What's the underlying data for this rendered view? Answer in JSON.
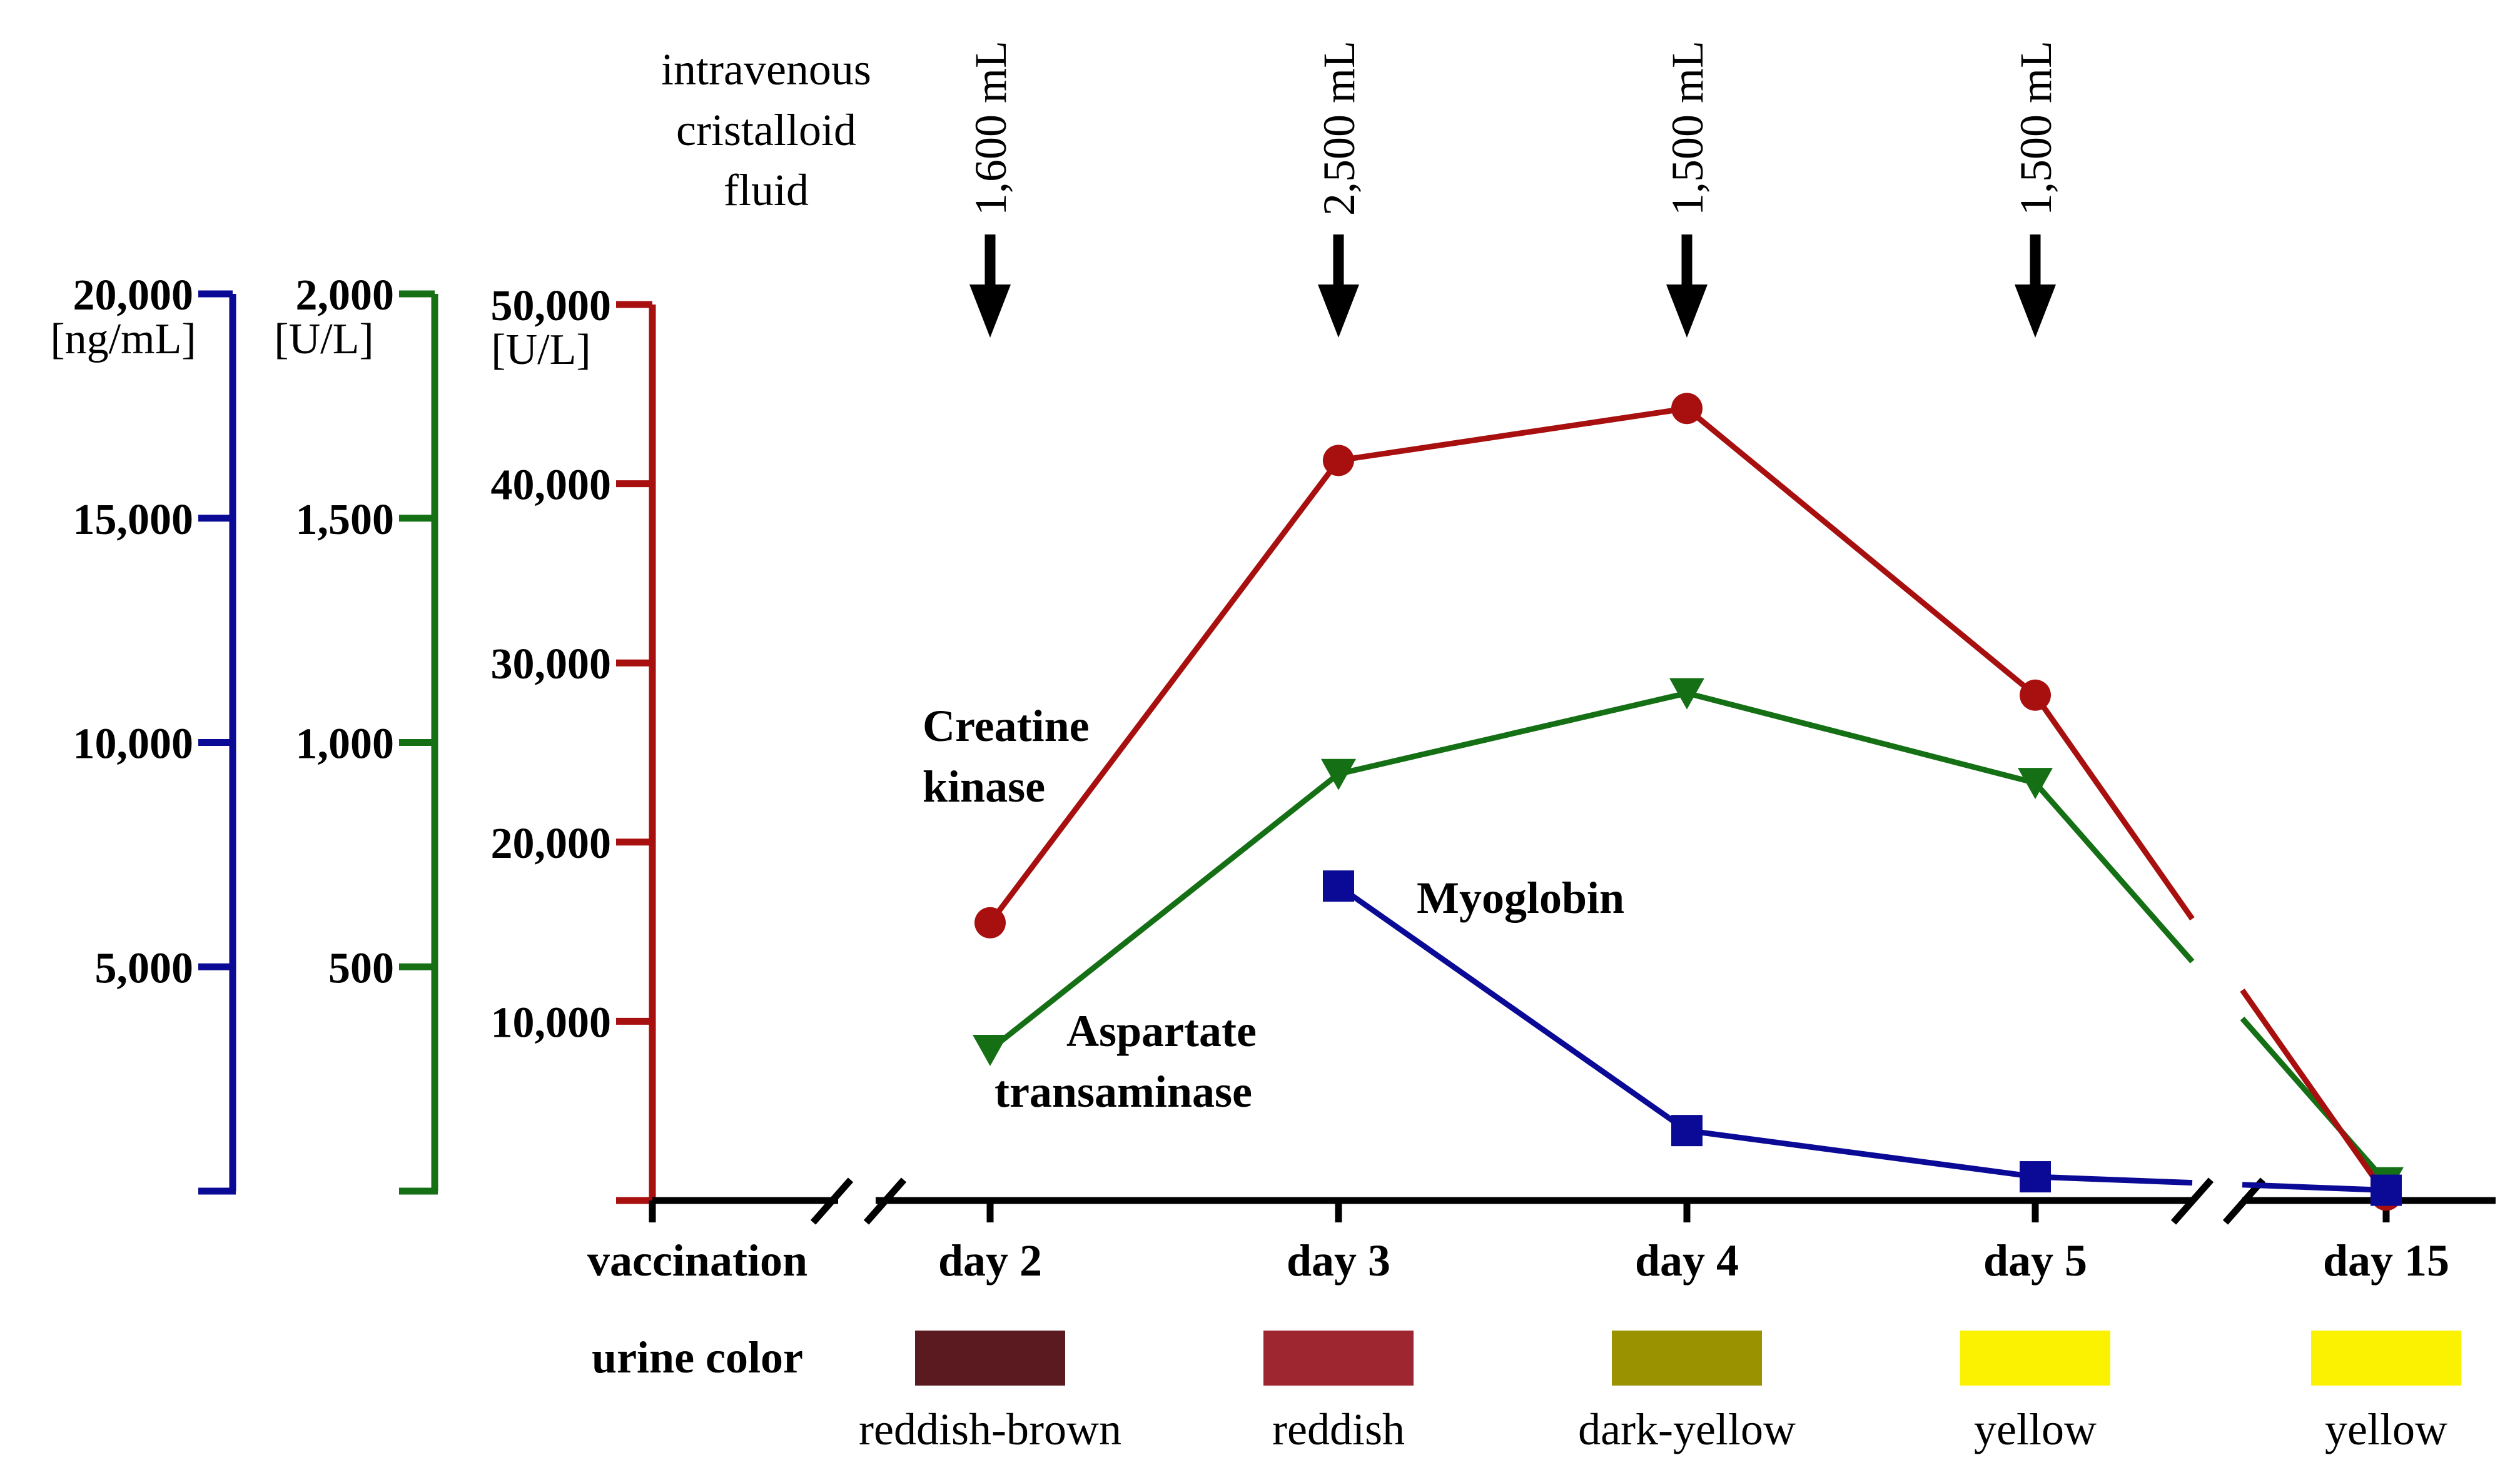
{
  "chart_data": {
    "type": "line",
    "categories": [
      "day 2",
      "day 3",
      "day 4",
      "day 5",
      "day 15"
    ],
    "vaccination_label": "vaccination",
    "fluid_header": [
      "intravenous",
      "cristalloid",
      "fluid"
    ],
    "fluid_doses": [
      {
        "day": "day 2",
        "label": "1,600 mL"
      },
      {
        "day": "day 3",
        "label": "2,500 mL"
      },
      {
        "day": "day 4",
        "label": "1,500 mL"
      },
      {
        "day": "day 5",
        "label": "1,500 mL"
      }
    ],
    "axes": [
      {
        "id": "myoglobin",
        "color": "#0a0a96",
        "unit": "[ng/mL]",
        "range": [
          0,
          20000
        ],
        "ticks": [
          5000,
          10000,
          15000,
          20000
        ],
        "tick_labels": [
          "5,000",
          "10,000",
          "15,000",
          "20,000"
        ]
      },
      {
        "id": "ast",
        "color": "#157015",
        "unit": "[U/L]",
        "range": [
          0,
          2000
        ],
        "ticks": [
          500,
          1000,
          1500,
          2000
        ],
        "tick_labels": [
          "500",
          "1,000",
          "1,500",
          "2,000"
        ]
      },
      {
        "id": "ck",
        "color": "#a80f0f",
        "unit": "[U/L]",
        "range": [
          0,
          50000
        ],
        "ticks": [
          10000,
          20000,
          30000,
          40000,
          50000
        ],
        "tick_labels": [
          "10,000",
          "20,000",
          "30,000",
          "40,000",
          "50,000"
        ]
      }
    ],
    "series": [
      {
        "id": "ck",
        "name": "Creatine kinase",
        "label_lines": [
          "Creatine",
          "kinase"
        ],
        "axis": "ck",
        "marker": "circle",
        "color": "#a80f0f",
        "values": [
          15500,
          41300,
          44200,
          28200,
          300
        ]
      },
      {
        "id": "ast",
        "name": "Aspartate transaminase",
        "label_lines": [
          "Aspartate",
          "transaminase"
        ],
        "axis": "ast",
        "marker": "triangle-down",
        "color": "#157015",
        "values": [
          315,
          930,
          1110,
          910,
          20
        ]
      },
      {
        "id": "myoglobin",
        "name": "Myoglobin",
        "label_lines": [
          "Myoglobin"
        ],
        "axis": "myoglobin",
        "marker": "square",
        "color": "#0a0a96",
        "values": [
          null,
          6800,
          1350,
          320,
          20
        ]
      }
    ],
    "urine_color": {
      "label": "urine color",
      "swatches": [
        {
          "day": "day 2",
          "name": "reddish-brown",
          "color": "#5a1a20"
        },
        {
          "day": "day 3",
          "name": "reddish",
          "color": "#9e2630"
        },
        {
          "day": "day 4",
          "name": "dark-yellow",
          "color": "#9b9200"
        },
        {
          "day": "day 5",
          "name": "yellow",
          "color": "#faf200"
        },
        {
          "day": "day 15",
          "name": "yellow",
          "color": "#faf200"
        }
      ]
    }
  }
}
